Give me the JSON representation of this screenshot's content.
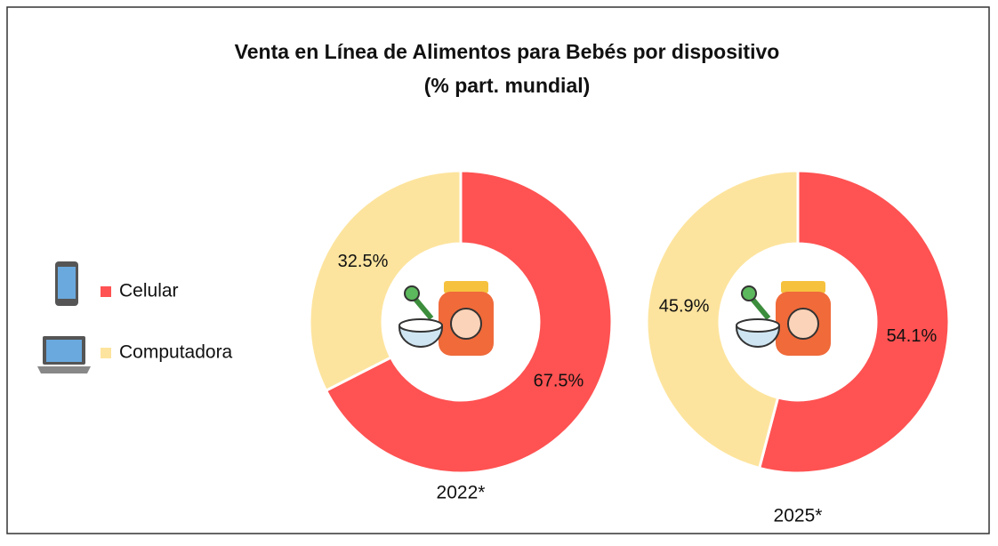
{
  "title": [
    "Venta en Línea de Alimentos para Bebés por dispositivo",
    "(% part. mundial)"
  ],
  "chart_data": [
    {
      "type": "donut",
      "label": "2022*",
      "categories": [
        "Celular",
        "Computadora"
      ],
      "values": [
        67.5,
        32.5
      ],
      "value_labels": [
        "67.5%",
        "32.5%"
      ],
      "colors": [
        "#ff5252",
        "#fde49e"
      ]
    },
    {
      "type": "donut",
      "label": "2025*",
      "categories": [
        "Celular",
        "Computadora"
      ],
      "values": [
        54.1,
        45.9
      ],
      "value_labels": [
        "54.1%",
        "45.9%"
      ],
      "colors": [
        "#ff5252",
        "#fde49e"
      ]
    }
  ]
}
